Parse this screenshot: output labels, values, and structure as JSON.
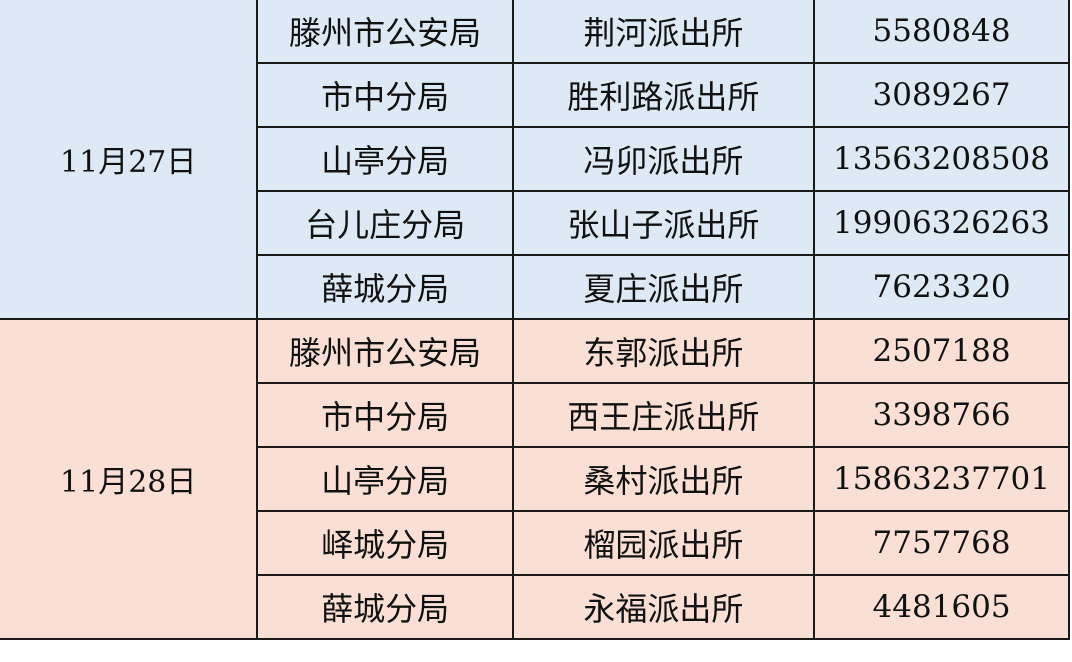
{
  "groups": [
    {
      "date": "11月27日",
      "color": "#dde9f4",
      "rows": [
        {
          "bureau": "滕州市公安局",
          "station": "荆河派出所",
          "phone": "5580848"
        },
        {
          "bureau": "市中分局",
          "station": "胜利路派出所",
          "phone": "3089267"
        },
        {
          "bureau": "山亭分局",
          "station": "冯卯派出所",
          "phone": "13563208508"
        },
        {
          "bureau": "台儿庄分局",
          "station": "张山子派出所",
          "phone": "19906326263"
        },
        {
          "bureau": "薛城分局",
          "station": "夏庄派出所",
          "phone": "7623320"
        }
      ]
    },
    {
      "date": "11月28日",
      "color": "#fae0d4",
      "rows": [
        {
          "bureau": "滕州市公安局",
          "station": "东郭派出所",
          "phone": "2507188"
        },
        {
          "bureau": "市中分局",
          "station": "西王庄派出所",
          "phone": "3398766"
        },
        {
          "bureau": "山亭分局",
          "station": "桑村派出所",
          "phone": "15863237701"
        },
        {
          "bureau": "峄城分局",
          "station": "榴园派出所",
          "phone": "7757768"
        },
        {
          "bureau": "薛城分局",
          "station": "永福派出所",
          "phone": "4481605"
        }
      ]
    }
  ]
}
